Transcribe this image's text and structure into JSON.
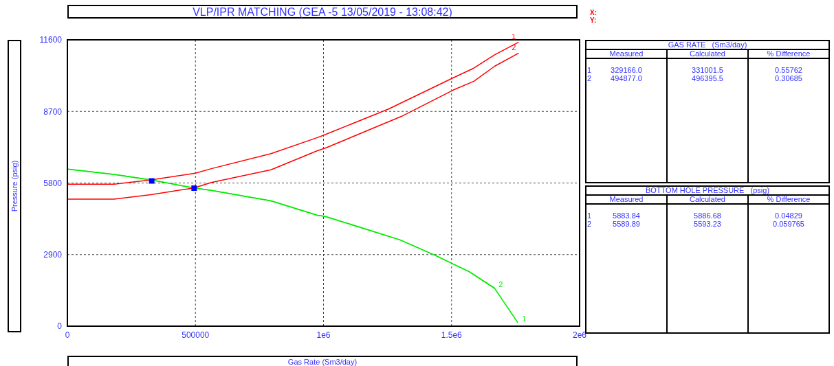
{
  "chart_data": [
    {
      "type": "line",
      "title": "VLP/IPR MATCHING (GEA -5 13/05/2019 - 13:08:42)",
      "xlabel": "Gas Rate  (Sm3/day)",
      "ylabel": "Pressure  (psig)",
      "annotations": [
        "X:",
        "Y:"
      ],
      "xlim": [
        0,
        2000000
      ],
      "xticks": [
        0,
        500000,
        {
          "value": 1000000,
          "label": "1e6"
        },
        {
          "value": 1500000,
          "label": "1.5e6"
        },
        {
          "value": 2000000,
          "label": "2e6"
        }
      ],
      "ylim": [
        0,
        11600
      ],
      "yticks": [
        0,
        2900,
        5800,
        8700,
        11600
      ],
      "grid": true,
      "series": [
        {
          "name": "1",
          "color": "#ff0000",
          "x": [
            0,
            182000,
            326000,
            500000,
            562000,
            795000,
            976000,
            1000000,
            1254000,
            1507000,
            1587000,
            1668000,
            1762000
          ],
          "values": [
            5749,
            5749,
            5926,
            6196,
            6381,
            6988,
            7639,
            7734,
            8796,
            10062,
            10453,
            10993,
            11507
          ]
        },
        {
          "name": "2",
          "color": "#ff0000",
          "x": [
            0,
            182000,
            326000,
            494000,
            562000,
            795000,
            976000,
            1005000,
            1304000,
            1507000,
            1587000,
            1668000,
            1762000
          ],
          "values": [
            5143,
            5143,
            5330,
            5598,
            5822,
            6336,
            7108,
            7203,
            8497,
            9568,
            9922,
            10529,
            11060
          ]
        },
        {
          "name": "1",
          "color": "#00ee00",
          "x": [
            0,
            182000,
            326000,
            494000,
            562000,
            795000,
            976000,
            1005000,
            1299000,
            1442000,
            1507000,
            1569000,
            1668000,
            1759000
          ],
          "values": [
            6364,
            6149,
            5926,
            5598,
            5498,
            5079,
            4492,
            4453,
            3494,
            2842,
            2516,
            2208,
            1537,
            140
          ]
        },
        {
          "name": "2",
          "color": "#00ee00",
          "x": [
            0,
            182000,
            326000,
            494000,
            562000,
            795000,
            976000,
            1005000,
            1299000,
            1442000,
            1507000,
            1569000,
            1668000
          ],
          "values": [
            6364,
            6149,
            5926,
            5598,
            5498,
            5079,
            4492,
            4453,
            3494,
            2842,
            2516,
            2208,
            1537
          ]
        },
        {
          "type": "scatter",
          "marker": "square",
          "color": "#0000ff",
          "x": [
            329166,
            494877
          ],
          "values": [
            5883.84,
            5589.89
          ]
        }
      ]
    },
    {
      "type": "other",
      "title": "GAS RATE   (Sm3/day)",
      "categories": [
        "Measured",
        "Calculated",
        "% Difference"
      ],
      "y_categories": [
        "1",
        "2"
      ],
      "cell_labels": [
        [
          "329166.0",
          "331001.5",
          "0.55762"
        ],
        [
          "494877.0",
          "496395.5",
          "0.30685"
        ]
      ]
    },
    {
      "type": "other",
      "title": "BOTTOM HOLE PRESSURE   (psig)",
      "categories": [
        "Measured",
        "Calculated",
        "% Difference"
      ],
      "y_categories": [
        "1",
        "2"
      ],
      "cell_labels": [
        [
          "5883.84",
          "5886.68",
          "0.04829"
        ],
        [
          "5589.89",
          "5593.23",
          "0.059765"
        ]
      ]
    }
  ]
}
